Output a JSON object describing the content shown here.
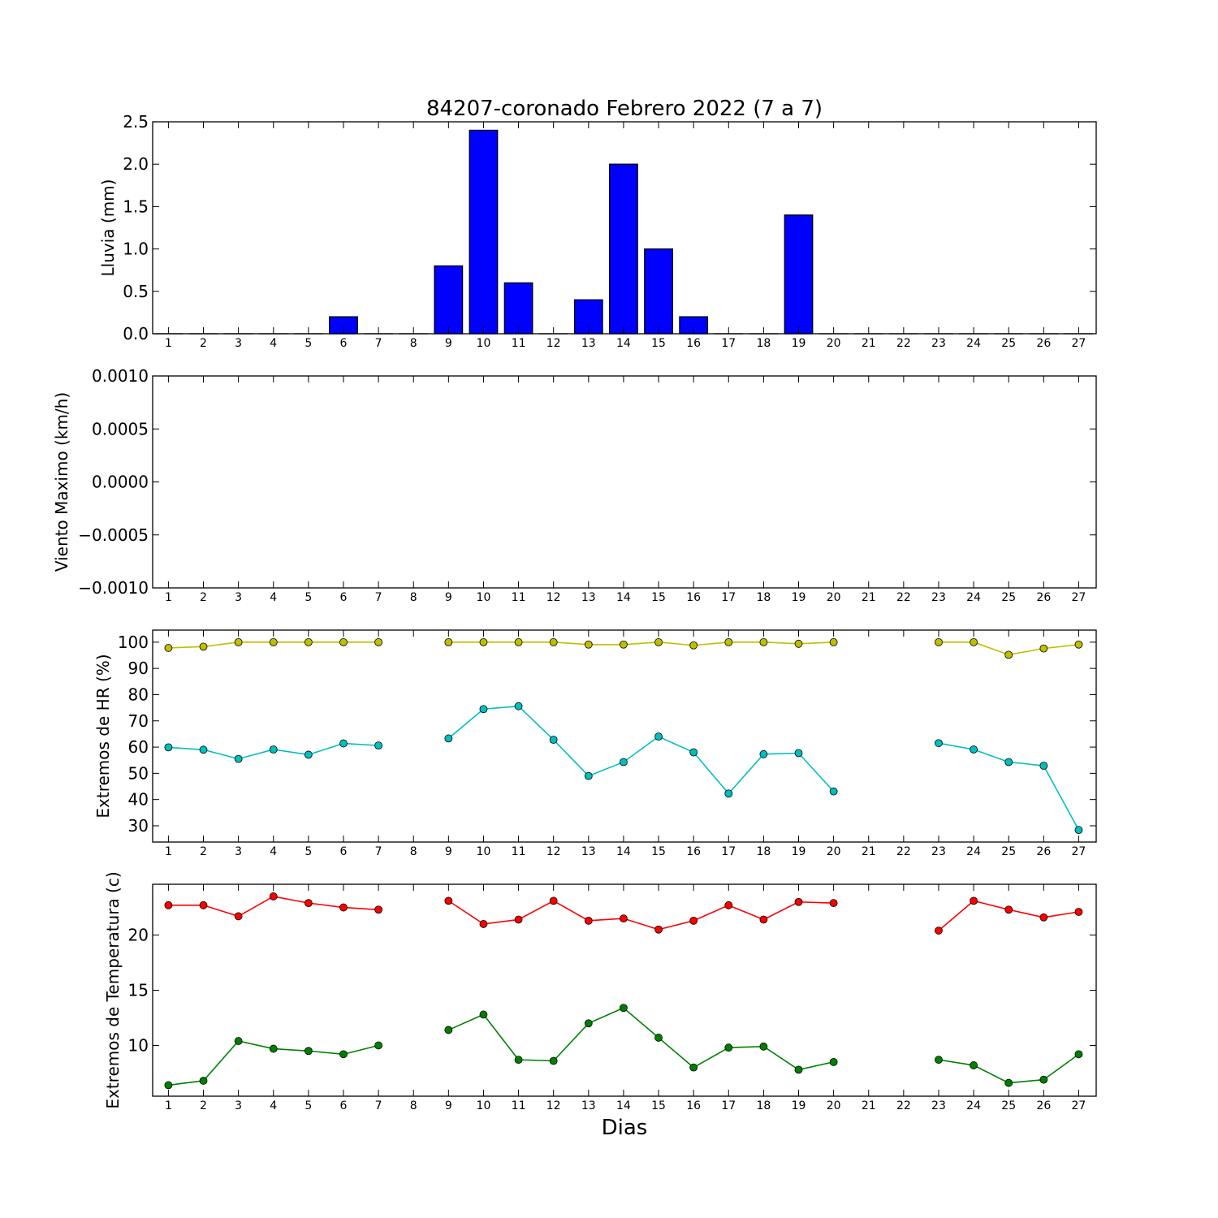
{
  "figure": {
    "title": "84207-coronado Febrero 2022  (7 a 7)",
    "xlabel": "Dias"
  },
  "chart_data": [
    {
      "type": "bar",
      "ylabel": "Lluvia (mm)",
      "x": [
        1,
        2,
        3,
        4,
        5,
        6,
        7,
        8,
        9,
        10,
        11,
        12,
        13,
        14,
        15,
        16,
        17,
        18,
        19,
        20,
        21,
        22,
        23,
        24,
        25,
        26,
        27
      ],
      "values": [
        0,
        0,
        0,
        0,
        0,
        0.2,
        0,
        0,
        0.8,
        2.4,
        0.6,
        0,
        0.4,
        2.0,
        1.0,
        0.2,
        0,
        0,
        1.4,
        0,
        0,
        0,
        0,
        0,
        0,
        0,
        0
      ],
      "xlim": [
        0.55,
        27.5
      ],
      "ylim": [
        0,
        2.5
      ],
      "yticks": [
        0.0,
        0.5,
        1.0,
        1.5,
        2.0,
        2.5
      ],
      "ytick_labels": [
        "0.0",
        "0.5",
        "1.0",
        "1.5",
        "2.0",
        "2.5"
      ],
      "xticks": [
        1,
        2,
        3,
        4,
        5,
        6,
        7,
        8,
        9,
        10,
        11,
        12,
        13,
        14,
        15,
        16,
        17,
        18,
        19,
        20,
        21,
        22,
        23,
        24,
        25,
        26,
        27
      ],
      "bar_color": "#0000ff"
    },
    {
      "type": "line",
      "ylabel": "Viento Maximo (km/h)",
      "series": [],
      "xlim": [
        0.55,
        27.5
      ],
      "ylim": [
        -0.001,
        0.001
      ],
      "yticks": [
        -0.001,
        -0.0005,
        0,
        0.0005,
        0.001
      ],
      "ytick_labels": [
        "−0.0010",
        "−0.0005",
        "0.0000",
        "0.0005",
        "0.0010"
      ],
      "xticks": [
        1,
        2,
        3,
        4,
        5,
        6,
        7,
        8,
        9,
        10,
        11,
        12,
        13,
        14,
        15,
        16,
        17,
        18,
        19,
        20,
        21,
        22,
        23,
        24,
        25,
        26,
        27
      ]
    },
    {
      "type": "line",
      "ylabel": "Extremos de HR (%)",
      "x": [
        1,
        2,
        3,
        4,
        5,
        6,
        7,
        8,
        9,
        10,
        11,
        12,
        13,
        14,
        15,
        16,
        17,
        18,
        19,
        20,
        21,
        22,
        23,
        24,
        25,
        26,
        27
      ],
      "series": [
        {
          "color": "#bfbf00",
          "values": [
            97.8,
            98.3,
            100,
            100,
            100,
            100,
            100,
            null,
            100,
            100,
            100,
            100,
            99.1,
            99.1,
            100,
            98.8,
            100,
            100,
            99.4,
            100,
            null,
            null,
            100,
            100,
            95.2,
            97.6,
            99.1
          ]
        },
        {
          "color": "#00bfbf",
          "values": [
            59.9,
            59.0,
            55.5,
            59.1,
            57.1,
            61.4,
            60.6,
            null,
            63.3,
            74.5,
            75.6,
            62.8,
            49.0,
            54.3,
            64.0,
            58.0,
            42.3,
            57.3,
            57.7,
            43.1,
            null,
            null,
            61.5,
            59.1,
            54.3,
            52.9,
            28.4
          ]
        }
      ],
      "xlim": [
        0.55,
        27.5
      ],
      "ylim": [
        23.8,
        104.6
      ],
      "yticks": [
        30,
        40,
        50,
        60,
        70,
        80,
        90,
        100
      ],
      "ytick_labels": [
        "30",
        "40",
        "50",
        "60",
        "70",
        "80",
        "90",
        "100"
      ],
      "xticks": [
        1,
        2,
        3,
        4,
        5,
        6,
        7,
        8,
        9,
        10,
        11,
        12,
        13,
        14,
        15,
        16,
        17,
        18,
        19,
        20,
        21,
        22,
        23,
        24,
        25,
        26,
        27
      ]
    },
    {
      "type": "line",
      "ylabel": "Extremos de Temperatura (c)",
      "x": [
        1,
        2,
        3,
        4,
        5,
        6,
        7,
        8,
        9,
        10,
        11,
        12,
        13,
        14,
        15,
        16,
        17,
        18,
        19,
        20,
        21,
        22,
        23,
        24,
        25,
        26,
        27
      ],
      "series": [
        {
          "color": "#ff0000",
          "values": [
            22.7,
            22.7,
            21.7,
            23.5,
            22.9,
            22.5,
            22.3,
            null,
            23.1,
            21.0,
            21.4,
            23.1,
            21.3,
            21.5,
            20.5,
            21.3,
            22.7,
            21.4,
            23.0,
            22.9,
            null,
            null,
            20.4,
            23.1,
            22.3,
            21.6,
            22.1
          ]
        },
        {
          "color": "#008000",
          "values": [
            6.4,
            6.8,
            10.4,
            9.7,
            9.5,
            9.2,
            10.0,
            null,
            11.4,
            12.8,
            8.7,
            8.6,
            12.0,
            13.4,
            10.7,
            8.0,
            9.8,
            9.9,
            7.8,
            8.5,
            null,
            null,
            8.7,
            8.2,
            6.6,
            6.9,
            9.2
          ]
        }
      ],
      "xlim": [
        0.55,
        27.5
      ],
      "ylim": [
        5.4,
        24.6
      ],
      "yticks": [
        10,
        15,
        20
      ],
      "ytick_labels": [
        "10",
        "15",
        "20"
      ],
      "xticks": [
        1,
        2,
        3,
        4,
        5,
        6,
        7,
        8,
        9,
        10,
        11,
        12,
        13,
        14,
        15,
        16,
        17,
        18,
        19,
        20,
        21,
        22,
        23,
        24,
        25,
        26,
        27
      ]
    }
  ]
}
